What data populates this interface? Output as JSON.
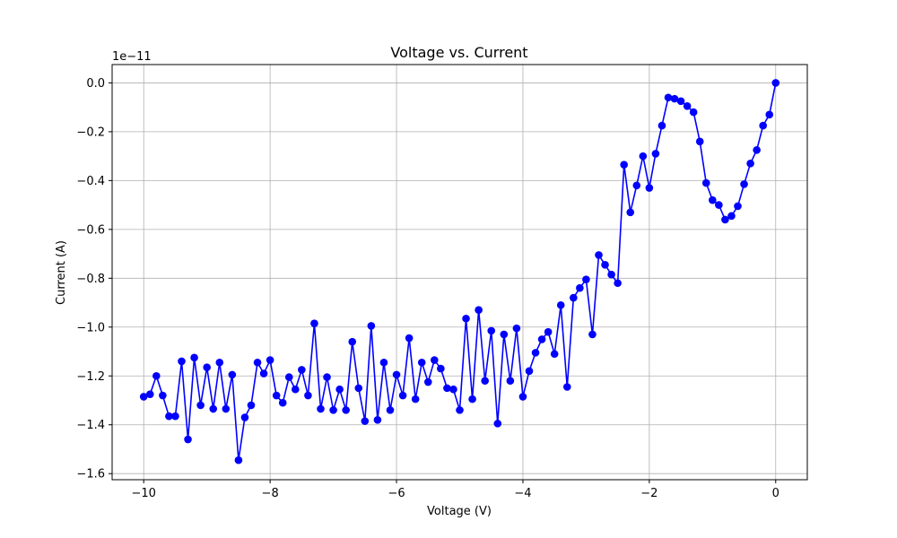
{
  "chart_data": {
    "type": "line",
    "title": "Voltage vs. Current",
    "xlabel": "Voltage (V)",
    "ylabel": "Current (A)",
    "y_offset_label": "1e−11",
    "xlim": [
      -10.5,
      0.5
    ],
    "ylim": [
      -1.625,
      0.075
    ],
    "x_ticks": [
      -10,
      -8,
      -6,
      -4,
      -2,
      0
    ],
    "x_tick_labels": [
      "−10",
      "−8",
      "−6",
      "−4",
      "−2",
      "0"
    ],
    "y_ticks": [
      0.0,
      -0.2,
      -0.4,
      -0.6,
      -0.8,
      -1.0,
      -1.2,
      -1.4,
      -1.6
    ],
    "y_tick_labels": [
      "0.0",
      "−0.2",
      "−0.4",
      "−0.6",
      "−0.8",
      "−1.0",
      "−1.2",
      "−1.4",
      "−1.6"
    ],
    "grid": true,
    "series_color": "#0000ff",
    "series": [
      {
        "x": [
          -10.0,
          -9.9,
          -9.8,
          -9.7,
          -9.6,
          -9.5,
          -9.4,
          -9.3,
          -9.2,
          -9.1,
          -9.0,
          -8.9,
          -8.8,
          -8.7,
          -8.6,
          -8.5,
          -8.4,
          -8.3,
          -8.2,
          -8.1,
          -8.0,
          -7.9,
          -7.8,
          -7.7,
          -7.6,
          -7.5,
          -7.4,
          -7.3,
          -7.2,
          -7.1,
          -7.0,
          -6.9,
          -6.8,
          -6.7,
          -6.6,
          -6.5,
          -6.4,
          -6.3,
          -6.2,
          -6.1,
          -6.0,
          -5.9,
          -5.8,
          -5.7,
          -5.6,
          -5.5,
          -5.4,
          -5.3,
          -5.2,
          -5.1,
          -5.0,
          -4.9,
          -4.8,
          -4.7,
          -4.6,
          -4.5,
          -4.4,
          -4.3,
          -4.2,
          -4.1,
          -4.0,
          -3.9,
          -3.8,
          -3.7,
          -3.6,
          -3.5,
          -3.4,
          -3.3,
          -3.2,
          -3.1,
          -3.0,
          -2.9,
          -2.8,
          -2.7,
          -2.6,
          -2.5,
          -2.4,
          -2.3,
          -2.2,
          -2.1,
          -2.0,
          -1.9,
          -1.8,
          -1.7,
          -1.6,
          -1.5,
          -1.4,
          -1.3,
          -1.2,
          -1.1,
          -1.0,
          -0.9,
          -0.8,
          -0.7,
          -0.6,
          -0.5,
          -0.4,
          -0.3,
          -0.2,
          -0.1,
          0.0
        ],
        "values": [
          -1.285,
          -1.275,
          -1.2,
          -1.28,
          -1.365,
          -1.365,
          -1.14,
          -1.46,
          -1.125,
          -1.32,
          -1.165,
          -1.335,
          -1.145,
          -1.335,
          -1.195,
          -1.545,
          -1.37,
          -1.32,
          -1.145,
          -1.19,
          -1.135,
          -1.28,
          -1.31,
          -1.205,
          -1.255,
          -1.175,
          -1.28,
          -0.985,
          -1.335,
          -1.205,
          -1.34,
          -1.255,
          -1.34,
          -1.06,
          -1.25,
          -1.385,
          -0.995,
          -1.38,
          -1.145,
          -1.34,
          -1.195,
          -1.28,
          -1.045,
          -1.295,
          -1.145,
          -1.225,
          -1.135,
          -1.17,
          -1.25,
          -1.255,
          -1.34,
          -0.965,
          -1.295,
          -0.93,
          -1.22,
          -1.015,
          -1.395,
          -1.03,
          -1.22,
          -1.005,
          -1.285,
          -1.18,
          -1.105,
          -1.05,
          -1.02,
          -1.11,
          -0.91,
          -1.245,
          -0.88,
          -0.84,
          -0.805,
          -1.03,
          -0.705,
          -0.745,
          -0.785,
          -0.82,
          -0.335,
          -0.53,
          -0.42,
          -0.3,
          -0.43,
          -0.29,
          -0.175,
          -0.06,
          -0.065,
          -0.075,
          -0.095,
          -0.12,
          -0.24,
          -0.41,
          -0.48,
          -0.5,
          -0.56,
          -0.545,
          -0.505,
          -0.415,
          -0.33,
          -0.275,
          -0.175,
          -0.13,
          0.0
        ]
      }
    ]
  }
}
